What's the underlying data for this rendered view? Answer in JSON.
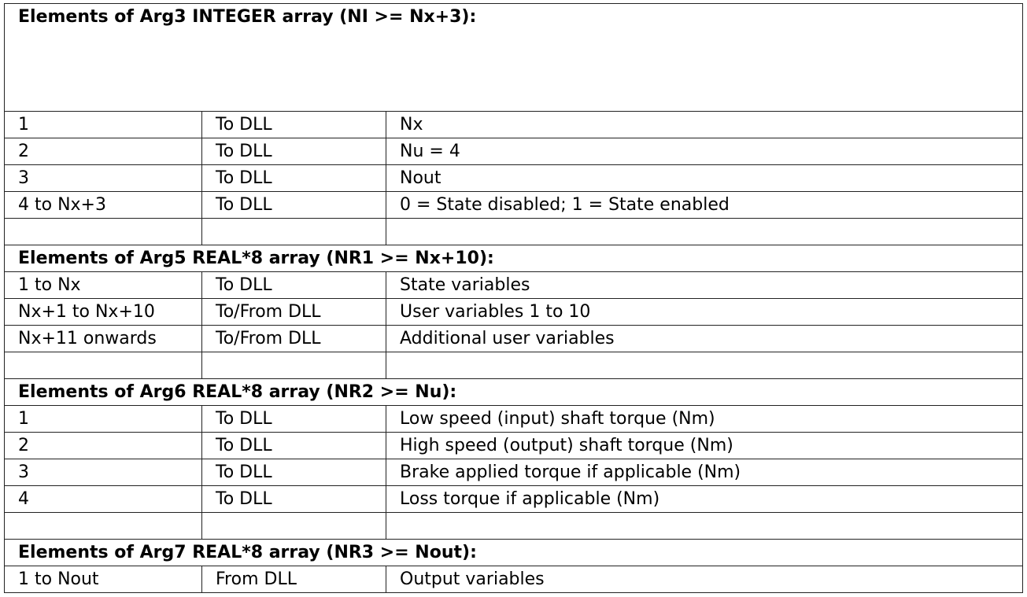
{
  "sections": [
    {
      "title": "Elements of Arg3 INTEGER array (NI >= Nx+3):",
      "rows": [
        [
          "1",
          "To DLL",
          "Nx"
        ],
        [
          "2",
          "To DLL",
          "Nu = 4"
        ],
        [
          "3",
          "To DLL",
          "Nout"
        ],
        [
          "4 to Nx+3",
          "To DLL",
          "0 = State disabled; 1 = State enabled"
        ],
        [
          "",
          "",
          ""
        ]
      ]
    },
    {
      "title": "Elements of Arg5 REAL*8 array (NR1 >= Nx+10):",
      "rows": [
        [
          "1 to Nx",
          "To DLL",
          "State variables"
        ],
        [
          "Nx+1 to Nx+10",
          "To/From DLL",
          "User variables 1 to 10"
        ],
        [
          "Nx+11 onwards",
          "To/From DLL",
          "Additional user variables"
        ],
        [
          "",
          "",
          ""
        ]
      ]
    },
    {
      "title": "Elements of Arg6 REAL*8 array (NR2 >= Nu):",
      "rows": [
        [
          "1",
          "To DLL",
          "Low speed (input) shaft torque (Nm)"
        ],
        [
          "2",
          "To DLL",
          "High speed (output) shaft torque (Nm)"
        ],
        [
          "3",
          "To DLL",
          "Brake applied torque if applicable (Nm)"
        ],
        [
          "4",
          "To DLL",
          "Loss torque if applicable (Nm)"
        ],
        [
          "",
          "",
          ""
        ]
      ]
    },
    {
      "title": "Elements of Arg7 REAL*8 array (NR3 >= Nout):",
      "rows": [
        [
          "1 to Nout",
          "From DLL",
          "Output variables"
        ]
      ]
    }
  ]
}
